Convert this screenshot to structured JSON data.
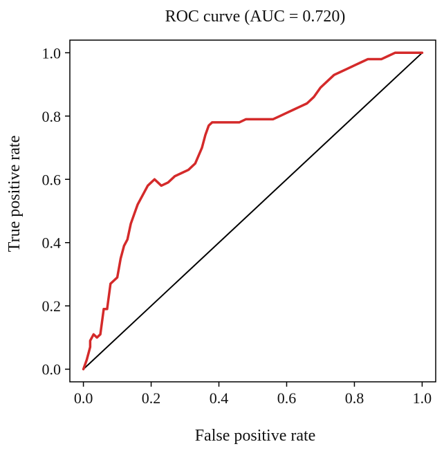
{
  "chart_data": {
    "type": "line",
    "title": "ROC curve (AUC = 0.720)",
    "xlabel": "False positive rate",
    "ylabel": "True positive rate",
    "xlim": [
      -0.04,
      1.04
    ],
    "ylim": [
      -0.04,
      1.04
    ],
    "x_ticks": [
      0.0,
      0.2,
      0.4,
      0.6,
      0.8,
      1.0
    ],
    "y_ticks": [
      0.0,
      0.2,
      0.4,
      0.6,
      0.8,
      1.0
    ],
    "x_tick_labels": [
      "0.0",
      "0.2",
      "0.4",
      "0.6",
      "0.8",
      "1.0"
    ],
    "y_tick_labels": [
      "0.0",
      "0.2",
      "0.4",
      "0.6",
      "0.8",
      "1.0"
    ],
    "grid": false,
    "legend": false,
    "colors": {
      "roc_curve": "#d42a2a",
      "diagonal": "#000000",
      "axes": "#000000"
    },
    "series": [
      {
        "x": [
          0.0,
          0.01,
          0.02,
          0.02,
          0.03,
          0.04,
          0.05,
          0.06,
          0.07,
          0.08,
          0.09,
          0.1,
          0.11,
          0.12,
          0.13,
          0.14,
          0.15,
          0.16,
          0.17,
          0.18,
          0.19,
          0.2,
          0.21,
          0.22,
          0.23,
          0.25,
          0.27,
          0.29,
          0.31,
          0.33,
          0.35,
          0.36,
          0.37,
          0.38,
          0.4,
          0.43,
          0.46,
          0.48,
          0.5,
          0.53,
          0.56,
          0.58,
          0.6,
          0.62,
          0.64,
          0.66,
          0.68,
          0.7,
          0.72,
          0.74,
          0.76,
          0.78,
          0.8,
          0.82,
          0.84,
          0.86,
          0.88,
          0.9,
          0.92,
          0.94,
          0.96,
          0.98,
          1.0
        ],
        "y": [
          0.0,
          0.03,
          0.07,
          0.09,
          0.11,
          0.1,
          0.11,
          0.19,
          0.19,
          0.27,
          0.28,
          0.29,
          0.35,
          0.39,
          0.41,
          0.46,
          0.49,
          0.52,
          0.54,
          0.56,
          0.58,
          0.59,
          0.6,
          0.59,
          0.58,
          0.59,
          0.61,
          0.62,
          0.63,
          0.65,
          0.7,
          0.74,
          0.77,
          0.78,
          0.78,
          0.78,
          0.78,
          0.79,
          0.79,
          0.79,
          0.79,
          0.8,
          0.81,
          0.82,
          0.83,
          0.84,
          0.86,
          0.89,
          0.91,
          0.93,
          0.94,
          0.95,
          0.96,
          0.97,
          0.98,
          0.98,
          0.98,
          0.99,
          1.0,
          1.0,
          1.0,
          1.0,
          1.0
        ]
      }
    ],
    "reference_line": {
      "x": [
        0.0,
        1.0
      ],
      "y": [
        0.0,
        1.0
      ]
    }
  }
}
